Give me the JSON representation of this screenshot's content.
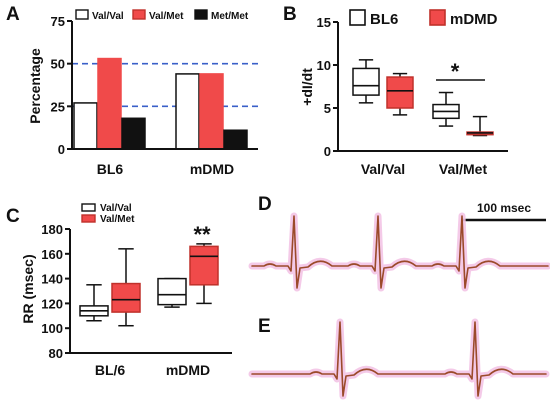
{
  "colors": {
    "white": "#ffffff",
    "red": "#f04a4a",
    "red_dark": "#c0312b",
    "black": "#111111",
    "dash": "#3a5fc8",
    "ecg_line": "#9b4a2a",
    "ecg_glow": "#f3c4e6"
  },
  "chart_data": [
    {
      "panel": "A",
      "type": "bar",
      "ylabel": "Percentage",
      "yticks": [
        "0",
        "25",
        "50",
        "75"
      ],
      "ylim": [
        0,
        75
      ],
      "reference_lines": [
        25,
        50
      ],
      "categories": [
        "BL6",
        "mDMD"
      ],
      "series": [
        {
          "name": "Val/Val",
          "values": [
            27,
            44
          ]
        },
        {
          "name": "Val/Met",
          "values": [
            53,
            44
          ]
        },
        {
          "name": "Met/Met",
          "values": [
            18,
            11
          ]
        }
      ],
      "legend_placement": "top"
    },
    {
      "panel": "B",
      "type": "box",
      "ylabel": "+dI/dt",
      "yticks": [
        "0",
        "5",
        "10",
        "15"
      ],
      "ylim": [
        0,
        15
      ],
      "categories": [
        "Val/Val",
        "Val/Met"
      ],
      "series_names": [
        "BL6",
        "mDMD"
      ],
      "boxes": [
        {
          "category": "Val/Val",
          "series": "BL6",
          "min": 5.6,
          "q1": 6.5,
          "median": 7.6,
          "q3": 9.6,
          "max": 10.6
        },
        {
          "category": "Val/Val",
          "series": "mDMD",
          "min": 4.2,
          "q1": 5.0,
          "median": 7.0,
          "q3": 8.6,
          "max": 9.0
        },
        {
          "category": "Val/Met",
          "series": "BL6",
          "min": 2.9,
          "q1": 3.8,
          "median": 4.6,
          "q3": 5.4,
          "max": 6.8
        },
        {
          "category": "Val/Met",
          "series": "mDMD",
          "min": 1.8,
          "q1": 1.9,
          "median": 2.1,
          "q3": 2.2,
          "max": 4.0
        }
      ],
      "significance": "*",
      "legend_placement": "top"
    },
    {
      "panel": "C",
      "type": "box",
      "ylabel": "RR (msec)",
      "yticks": [
        "80",
        "100",
        "120",
        "140",
        "160",
        "180"
      ],
      "ylim": [
        80,
        180
      ],
      "categories": [
        "BL/6",
        "mDMD"
      ],
      "series_names": [
        "Val/Val",
        "Val/Met"
      ],
      "boxes": [
        {
          "category": "BL/6",
          "series": "Val/Val",
          "min": 106,
          "q1": 110,
          "median": 114,
          "q3": 118,
          "max": 135
        },
        {
          "category": "BL/6",
          "series": "Val/Met",
          "min": 102,
          "q1": 113,
          "median": 123,
          "q3": 136,
          "max": 164
        },
        {
          "category": "mDMD",
          "series": "Val/Val",
          "min": 117,
          "q1": 119,
          "median": 127,
          "q3": 140,
          "max": 140
        },
        {
          "category": "mDMD",
          "series": "Val/Met",
          "min": 120,
          "q1": 135,
          "median": 158,
          "q3": 166,
          "max": 168
        }
      ],
      "significance": "**",
      "legend_placement": "top-left"
    }
  ],
  "ecg": {
    "panel_d_label": "D",
    "panel_e_label": "E",
    "scale_bar_label": "100 msec",
    "trace_d_beats": 3,
    "trace_e_beats": 2
  }
}
